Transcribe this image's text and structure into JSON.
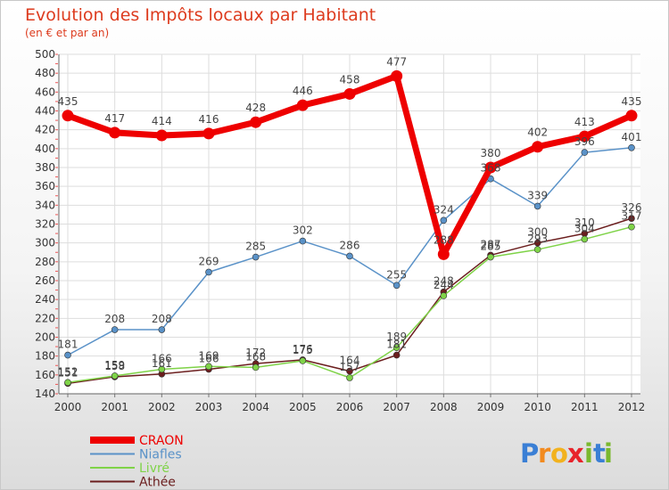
{
  "chart_data": {
    "type": "line",
    "title": "Evolution des Impôts locaux par Habitant",
    "subtitle": "(en € et par an)",
    "xlabel": "",
    "ylabel": "",
    "x": [
      "2000",
      "2001",
      "2002",
      "2003",
      "2004",
      "2005",
      "2006",
      "2007",
      "2008",
      "2009",
      "2010",
      "2011",
      "2012"
    ],
    "ylim": [
      140,
      500
    ],
    "yticks": [
      140,
      160,
      180,
      200,
      220,
      240,
      260,
      280,
      300,
      320,
      340,
      360,
      380,
      400,
      420,
      440,
      460,
      480,
      500
    ],
    "grid": true,
    "series": [
      {
        "name": "Athée",
        "color": "#6b1e1e",
        "values": [
          151,
          158,
          161,
          166,
          172,
          176,
          164,
          181,
          248,
          287,
          300,
          310,
          326
        ]
      },
      {
        "name": "Livré",
        "color": "#7fd348",
        "values": [
          152,
          159,
          166,
          169,
          168,
          175,
          157,
          189,
          244,
          285,
          293,
          304,
          317
        ]
      },
      {
        "name": "Niafles",
        "color": "#5a92c8",
        "values": [
          181,
          208,
          208,
          269,
          285,
          302,
          286,
          255,
          324,
          368,
          339,
          396,
          401
        ]
      },
      {
        "name": "CRAON",
        "color": "#ee0000",
        "values": [
          435,
          417,
          414,
          416,
          428,
          446,
          458,
          477,
          288,
          380,
          402,
          413,
          435
        ]
      }
    ],
    "legend": [
      "CRAON",
      "Niafles",
      "Livré",
      "Athée"
    ],
    "legend_position": "bottom-left"
  },
  "logo": {
    "text": "Proxiti",
    "letters": [
      "P",
      "r",
      "o",
      "x",
      "i",
      "t",
      "i"
    ]
  }
}
